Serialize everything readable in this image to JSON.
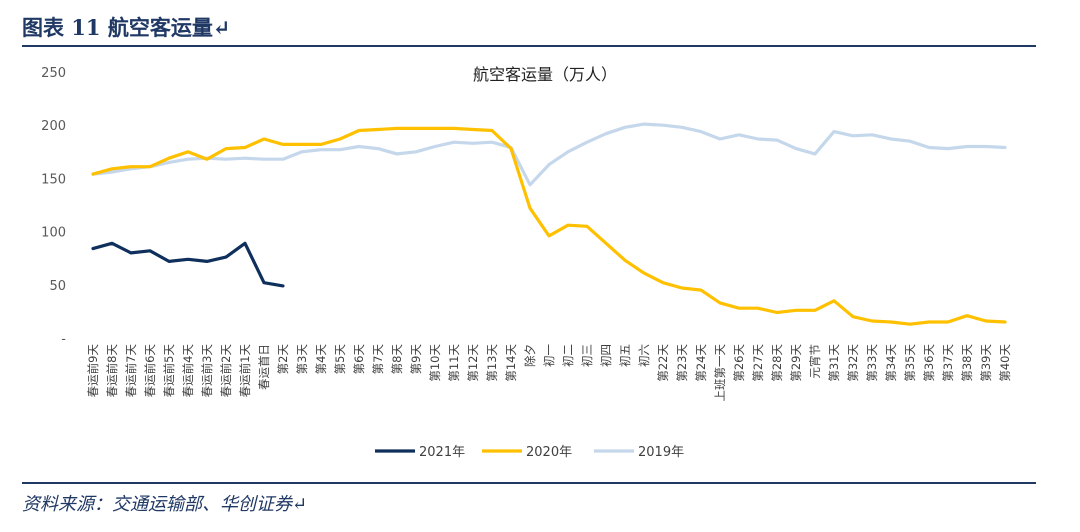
{
  "figure": {
    "title": "图表 11 航空客运量↵",
    "source": "资料来源：交通运输部、华创证券↵"
  },
  "chart_data": {
    "type": "line",
    "title": "航空客运量（万人）",
    "ylim": [
      0,
      250
    ],
    "yticks": [
      0,
      50,
      100,
      150,
      200,
      250
    ],
    "ytick_labels": [
      "-",
      "50",
      "100",
      "150",
      "200",
      "250"
    ],
    "grid": false,
    "legend_position": "bottom",
    "categories": [
      "春运前9天",
      "春运前8天",
      "春运前7天",
      "春运前6天",
      "春运前5天",
      "春运前4天",
      "春运前3天",
      "春运前2天",
      "春运前1天",
      "春运首日",
      "第2天",
      "第3天",
      "第4天",
      "第5天",
      "第6天",
      "第7天",
      "第8天",
      "第9天",
      "第10天",
      "第11天",
      "第12天",
      "第13天",
      "第14天",
      "除夕",
      "初一",
      "初二",
      "初三",
      "初四",
      "初五",
      "初六",
      "第22天",
      "第23天",
      "第24天",
      "上班第一天",
      "第26天",
      "第27天",
      "第28天",
      "第29天",
      "元宵节",
      "第31天",
      "第32天",
      "第33天",
      "第34天",
      "第35天",
      "第36天",
      "第37天",
      "第38天",
      "第39天",
      "第40天"
    ],
    "series": [
      {
        "name": "2021年",
        "color": "#0f2f5c",
        "values": [
          84,
          89,
          80,
          82,
          72,
          74,
          72,
          76,
          89,
          52,
          49,
          null,
          null,
          null,
          null,
          null,
          null,
          null,
          null,
          null,
          null,
          null,
          null,
          null,
          null,
          null,
          null,
          null,
          null,
          null,
          null,
          null,
          null,
          null,
          null,
          null,
          null,
          null,
          null,
          null,
          null,
          null,
          null,
          null,
          null,
          null,
          null,
          null,
          null
        ]
      },
      {
        "name": "2020年",
        "color": "#ffc000",
        "values": [
          154,
          159,
          161,
          161,
          169,
          175,
          168,
          178,
          179,
          187,
          182,
          182,
          182,
          187,
          195,
          196,
          197,
          197,
          197,
          197,
          196,
          195,
          178,
          122,
          96,
          106,
          105,
          89,
          73,
          61,
          52,
          47,
          45,
          33,
          28,
          28,
          24,
          26,
          26,
          35,
          20,
          16,
          15,
          13,
          15,
          15,
          21,
          16,
          15
        ]
      },
      {
        "name": "2019年",
        "color": "#c5d7eb",
        "values": [
          154,
          156,
          159,
          161,
          165,
          168,
          169,
          168,
          169,
          168,
          168,
          175,
          177,
          177,
          180,
          178,
          173,
          175,
          180,
          184,
          183,
          184,
          179,
          144,
          163,
          175,
          184,
          192,
          198,
          201,
          200,
          198,
          194,
          187,
          191,
          187,
          186,
          178,
          173,
          194,
          190,
          191,
          187,
          185,
          179,
          178,
          180,
          180,
          179
        ]
      }
    ]
  }
}
